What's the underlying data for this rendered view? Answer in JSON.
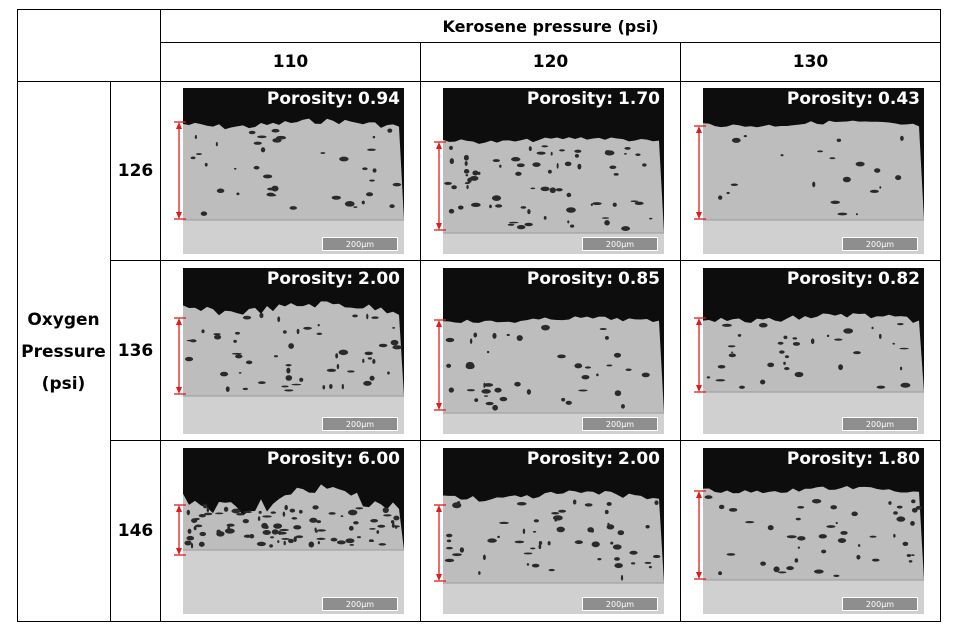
{
  "table": {
    "column_group_title": "Kerosene pressure (psi)",
    "columns": [
      "110",
      "120",
      "130"
    ],
    "row_group_title_lines": [
      "Oxygen",
      "Pressure",
      "(psi)"
    ],
    "rows": [
      "126",
      "136",
      "146"
    ],
    "porosity_label": "Porosity:",
    "scale_bar_label": "200μm",
    "cells": [
      [
        {
          "porosity": "0.94"
        },
        {
          "porosity": "1.70"
        },
        {
          "porosity": "0.43"
        }
      ],
      [
        {
          "porosity": "2.00"
        },
        {
          "porosity": "0.85"
        },
        {
          "porosity": "0.82"
        }
      ],
      [
        {
          "porosity": "6.00"
        },
        {
          "porosity": "2.00"
        },
        {
          "porosity": "1.80"
        }
      ]
    ]
  },
  "colors": {
    "background": "#ffffff",
    "grid_line": "#000000",
    "image_dark_region": "#0d0d0d",
    "coating": "#bdbdbd",
    "substrate": "#d0d0d0",
    "pore": "#2a2a2a",
    "thickness_arrow": "#e21b1b"
  }
}
